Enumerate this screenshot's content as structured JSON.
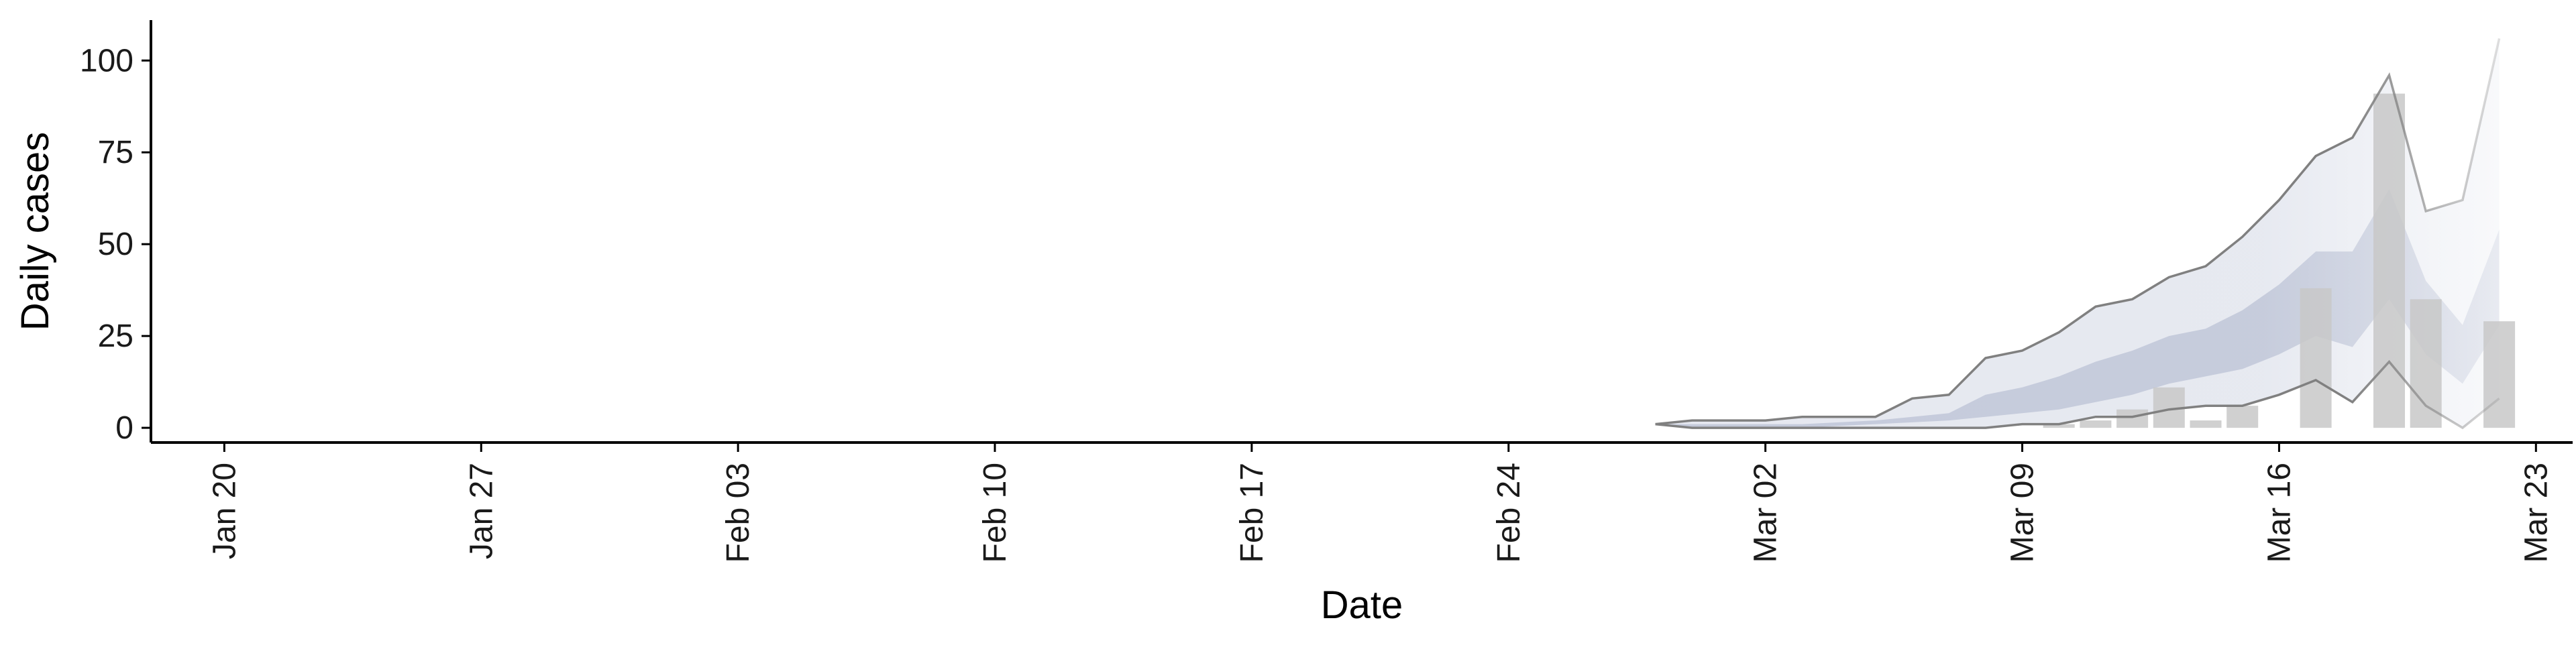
{
  "chart_data": {
    "type": "bar",
    "title": "",
    "xlabel": "Date",
    "ylabel": "Daily cases",
    "x_type": "date",
    "xlim": [
      "2020-01-18",
      "2020-03-24"
    ],
    "ylim": [
      -4,
      111
    ],
    "x_ticks": [
      {
        "date": "2020-01-20",
        "label": "Jan 20"
      },
      {
        "date": "2020-01-27",
        "label": "Jan 27"
      },
      {
        "date": "2020-02-03",
        "label": "Feb 03"
      },
      {
        "date": "2020-02-10",
        "label": "Feb 10"
      },
      {
        "date": "2020-02-17",
        "label": "Feb 17"
      },
      {
        "date": "2020-02-24",
        "label": "Feb 24"
      },
      {
        "date": "2020-03-02",
        "label": "Mar 02"
      },
      {
        "date": "2020-03-09",
        "label": "Mar 09"
      },
      {
        "date": "2020-03-16",
        "label": "Mar 16"
      },
      {
        "date": "2020-03-23",
        "label": "Mar 23"
      }
    ],
    "y_ticks": [
      {
        "value": 0,
        "label": "0"
      },
      {
        "value": 25,
        "label": "25"
      },
      {
        "value": 50,
        "label": "50"
      },
      {
        "value": 75,
        "label": "75"
      },
      {
        "value": 100,
        "label": "100"
      }
    ],
    "grid": false,
    "legend": "none",
    "colors": {
      "bars": "#c8c8c8",
      "band_outer": "#e4e7ef",
      "band_inner": "#c3c9da",
      "bound_lines": "#808080",
      "axis": "#000000"
    },
    "bars": [
      {
        "date": "2020-03-10",
        "value": 1
      },
      {
        "date": "2020-03-11",
        "value": 2
      },
      {
        "date": "2020-03-12",
        "value": 5
      },
      {
        "date": "2020-03-13",
        "value": 11
      },
      {
        "date": "2020-03-14",
        "value": 2
      },
      {
        "date": "2020-03-15",
        "value": 6
      },
      {
        "date": "2020-03-17",
        "value": 38
      },
      {
        "date": "2020-03-19",
        "value": 91
      },
      {
        "date": "2020-03-20",
        "value": 35
      },
      {
        "date": "2020-03-22",
        "value": 29
      }
    ],
    "bands": {
      "dates": [
        "2020-02-28",
        "2020-02-29",
        "2020-03-01",
        "2020-03-02",
        "2020-03-03",
        "2020-03-04",
        "2020-03-05",
        "2020-03-06",
        "2020-03-07",
        "2020-03-08",
        "2020-03-09",
        "2020-03-10",
        "2020-03-11",
        "2020-03-12",
        "2020-03-13",
        "2020-03-14",
        "2020-03-15",
        "2020-03-16",
        "2020-03-17",
        "2020-03-18",
        "2020-03-19",
        "2020-03-20",
        "2020-03-21",
        "2020-03-22"
      ],
      "upper_outer": [
        1,
        2,
        2,
        2,
        3,
        3,
        3,
        8,
        9,
        19,
        21,
        26,
        33,
        35,
        41,
        44,
        52,
        62,
        74,
        79,
        96,
        59,
        62,
        106
      ],
      "upper_inner": [
        1,
        1,
        1,
        1,
        1,
        1.5,
        2,
        3,
        4,
        9,
        11,
        14,
        18,
        21,
        25,
        27,
        32,
        39,
        48,
        48,
        65,
        40,
        28,
        54
      ],
      "lower_inner": [
        1,
        0,
        0,
        0,
        0,
        0.5,
        1,
        1.5,
        2,
        3,
        4,
        5,
        7,
        9,
        12,
        14,
        16,
        20,
        25,
        22,
        35,
        20,
        12,
        28
      ],
      "lower_outer": [
        1,
        0,
        0,
        0,
        0,
        0,
        0,
        0,
        0,
        0,
        1,
        1,
        3,
        3,
        5,
        6,
        6,
        9,
        13,
        7,
        18,
        6,
        0,
        8
      ]
    }
  }
}
